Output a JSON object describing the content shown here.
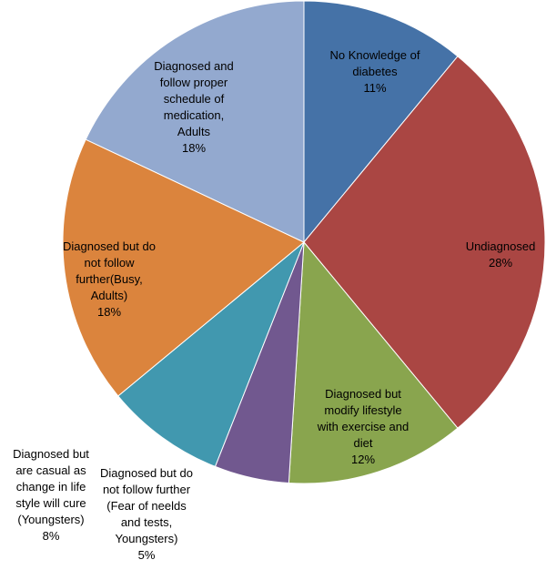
{
  "chart_data": {
    "type": "pie",
    "title": "",
    "slices": [
      {
        "name_lines": [
          "No Knowledge of",
          "diabetes"
        ],
        "value": 11,
        "label": "11%",
        "color": "#4572a7"
      },
      {
        "name_lines": [
          "Undiagnosed"
        ],
        "value": 28,
        "label": "28%",
        "color": "#aa4643"
      },
      {
        "name_lines": [
          "Diagnosed but",
          "modify lifestyle",
          "with exercise and",
          "diet"
        ],
        "value": 12,
        "label": "12%",
        "color": "#89a54e"
      },
      {
        "name_lines": [
          "Diagnosed but do",
          "not follow further",
          "(Fear of neelds",
          "and tests,",
          "Youngsters)"
        ],
        "value": 5,
        "label": "5%",
        "color": "#71588f"
      },
      {
        "name_lines": [
          "Diagnosed but",
          "are casual as",
          "change in life",
          "style will cure",
          "(Youngsters)"
        ],
        "value": 8,
        "label": "8%",
        "color": "#4198af"
      },
      {
        "name_lines": [
          "Diagnosed but do",
          "not follow",
          "further(Busy,",
          "Adults)"
        ],
        "value": 18,
        "label": "18%",
        "color": "#db843d"
      },
      {
        "name_lines": [
          "Diagnosed and",
          "follow proper",
          "schedule of",
          "medication,",
          "Adults"
        ],
        "value": 18,
        "label": "18%",
        "color": "#93a9cf"
      }
    ],
    "start_angle_deg": 0,
    "direction": "clockwise",
    "legend": "none",
    "data_labels": "category and percentage"
  }
}
